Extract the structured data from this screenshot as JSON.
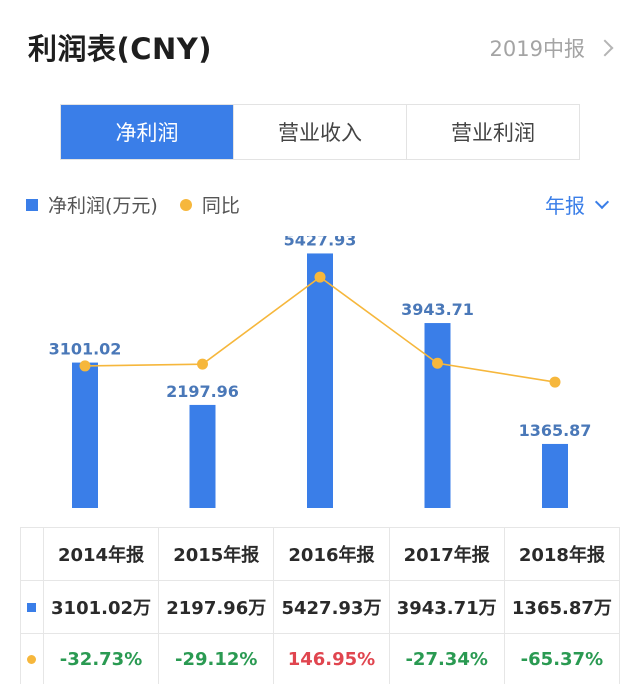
{
  "header": {
    "title": "利润表(CNY)",
    "period": "2019中报"
  },
  "tabs": [
    {
      "label": "净利润",
      "active": true
    },
    {
      "label": "营业收入",
      "active": false
    },
    {
      "label": "营业利润",
      "active": false
    }
  ],
  "legend": {
    "bar_label": "净利润(万元)",
    "line_label": "同比"
  },
  "frequency": "年报",
  "colors": {
    "accent": "#3a7ee8",
    "line": "#f6b73c",
    "positive": "#e0454f",
    "negative": "#2a9a52"
  },
  "chart_data": {
    "type": "bar",
    "categories": [
      "2014年报",
      "2015年报",
      "2016年报",
      "2017年报",
      "2018年报"
    ],
    "series": [
      {
        "name": "净利润(万元)",
        "type": "bar",
        "values": [
          3101.02,
          2197.96,
          5427.93,
          3943.71,
          1365.87
        ]
      },
      {
        "name": "同比",
        "type": "line",
        "values": [
          -32.73,
          -29.12,
          146.95,
          -27.34,
          -65.37
        ],
        "unit": "%"
      }
    ],
    "bar_labels": [
      "3101.02",
      "2197.96",
      "5427.93",
      "3943.71",
      "1365.87"
    ],
    "ylim": [
      0,
      5800
    ],
    "line_ylim": [
      -320,
      230
    ]
  },
  "table": {
    "headers": [
      "2014年报",
      "2015年报",
      "2016年报",
      "2017年报",
      "2018年报"
    ],
    "profit": [
      "3101.02万",
      "2197.96万",
      "5427.93万",
      "3943.71万",
      "1365.87万"
    ],
    "yoy": [
      "-32.73%",
      "-29.12%",
      "146.95%",
      "-27.34%",
      "-65.37%"
    ]
  }
}
